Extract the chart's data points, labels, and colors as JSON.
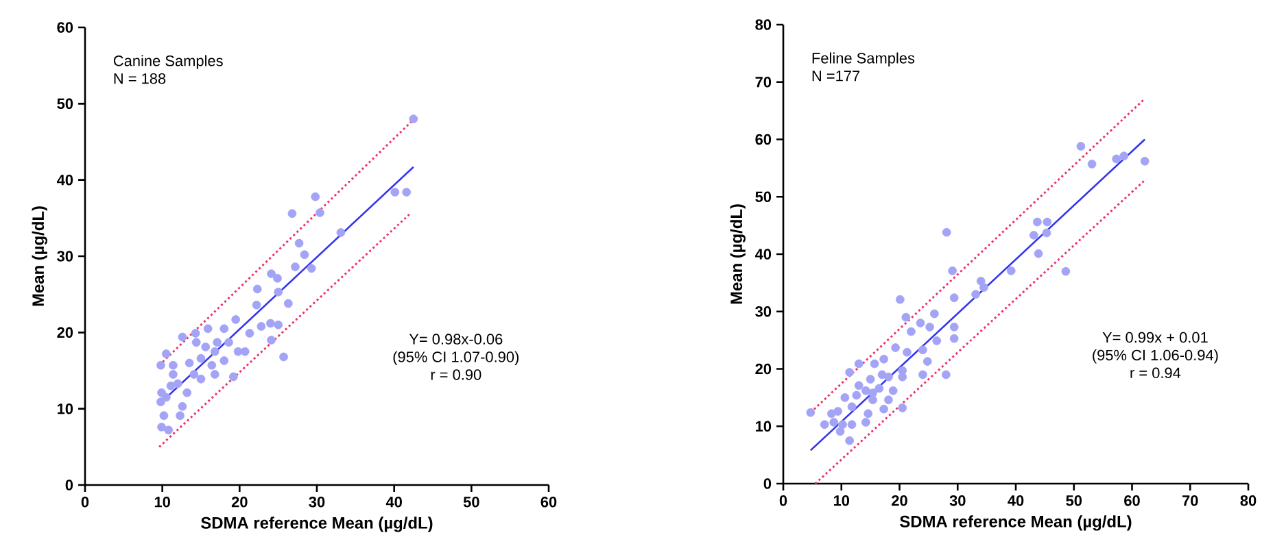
{
  "chart_data": [
    {
      "type": "scatter",
      "xlabel": "SDMA reference Mean (µg/dL)",
      "ylabel": "Mean (µg/dL)",
      "annotations": [
        "Canine Samples",
        "N = 188",
        "Y= 0.98x-0.06",
        "(95% CI 1.07-0.90)",
        "r = 0.90"
      ],
      "xlim": [
        0,
        60
      ],
      "ylim": [
        0,
        60
      ],
      "xticks": [
        0,
        10,
        20,
        30,
        40,
        50,
        60
      ],
      "yticks": [
        0,
        10,
        20,
        30,
        40,
        50,
        60
      ],
      "series": [
        {
          "marker": "circle",
          "color": "#a4a4f6",
          "x": [
            42.5,
            40.1,
            41.6,
            29.8,
            26.8,
            30.4,
            33.1,
            27.7,
            28.4,
            27.2,
            29.3,
            24.9,
            24.1,
            22.3,
            25.0,
            26.3,
            22.2,
            25.7,
            24.1,
            22.8,
            24.0,
            25.0,
            19.5,
            18.0,
            21.3,
            19.8,
            19.2,
            15.9,
            14.3,
            12.6,
            10.5,
            9.8,
            11.4,
            13.5,
            15.0,
            16.8,
            18.0,
            16.4,
            14.1,
            12.0,
            13.2,
            11.1,
            10.5,
            9.8,
            12.6,
            10.2,
            12.3,
            9.9,
            10.8,
            15.0,
            16.8,
            18.6,
            17.1,
            20.7,
            14.4,
            9.9,
            11.4,
            15.6
          ],
          "values": [
            48.0,
            38.4,
            38.4,
            37.8,
            35.6,
            35.7,
            33.1,
            31.7,
            30.2,
            28.6,
            28.4,
            27.1,
            27.7,
            25.7,
            25.3,
            23.8,
            23.6,
            16.8,
            19.0,
            20.8,
            21.2,
            21.0,
            21.7,
            20.5,
            19.9,
            17.5,
            14.2,
            20.5,
            19.9,
            19.4,
            17.2,
            15.7,
            15.7,
            16.0,
            16.6,
            17.5,
            16.3,
            15.7,
            14.5,
            13.3,
            12.1,
            13.0,
            11.5,
            10.9,
            10.3,
            9.1,
            9.1,
            7.6,
            7.2,
            13.9,
            14.5,
            18.7,
            18.7,
            17.5,
            18.7,
            12.1,
            14.5,
            18.1
          ]
        },
        {
          "type": "line",
          "line_style": "solid",
          "color": "#3333ee",
          "x": [
            9.6,
            42.5
          ],
          "values": [
            10.6,
            41.7
          ]
        },
        {
          "type": "line",
          "line_style": "dotted",
          "color": "#f0306a",
          "x": [
            9.6,
            42.5
          ],
          "values": [
            15.7,
            47.9
          ]
        },
        {
          "type": "line",
          "line_style": "dotted",
          "color": "#f0306a",
          "x": [
            9.6,
            42.2
          ],
          "values": [
            5.0,
            35.7
          ]
        }
      ]
    },
    {
      "type": "scatter",
      "xlabel": "SDMA reference Mean (µg/dL)",
      "ylabel": "Mean (µg/dL)",
      "annotations": [
        "Feline Samples",
        "N =177",
        "Y= 0.99x + 0.01",
        "(95% CI 1.06-0.94)",
        "r = 0.94"
      ],
      "xlim": [
        0,
        80
      ],
      "ylim": [
        0,
        80
      ],
      "xticks": [
        0,
        10,
        20,
        30,
        40,
        50,
        60,
        70,
        80
      ],
      "yticks": [
        0,
        10,
        20,
        30,
        40,
        50,
        60,
        70,
        80
      ],
      "series": [
        {
          "marker": "circle",
          "color": "#a4a4f6",
          "x": [
            4.7,
            51.2,
            53.1,
            57.3,
            58.6,
            62.2,
            43.7,
            45.4,
            43.1,
            45.3,
            43.9,
            48.6,
            39.2,
            34.0,
            34.5,
            33.1,
            28.1,
            29.1,
            29.4,
            29.4,
            29.4,
            20.1,
            26.0,
            21.1,
            23.6,
            25.2,
            26.4,
            22.0,
            19.3,
            24.0,
            21.3,
            24.8,
            28.0,
            24.0,
            20.5,
            17.3,
            20.5,
            18.1,
            15.7,
            13.0,
            11.4,
            15.0,
            16.5,
            14.2,
            12.6,
            15.4,
            18.1,
            20.5,
            17.3,
            14.6,
            11.8,
            10.6,
            9.4,
            8.3,
            8.7,
            10.2,
            11.8,
            14.2,
            11.4,
            9.8,
            7.1,
            13.0,
            15.4,
            17.0,
            18.9
          ],
          "values": [
            12.4,
            58.8,
            55.7,
            56.6,
            57.1,
            56.2,
            45.6,
            45.6,
            43.3,
            43.7,
            40.1,
            37.0,
            37.1,
            35.3,
            34.2,
            33.0,
            43.8,
            37.1,
            32.4,
            27.3,
            25.3,
            32.1,
            29.6,
            29.0,
            28.0,
            27.3,
            24.9,
            26.5,
            23.7,
            23.3,
            22.9,
            21.3,
            19.0,
            19.0,
            19.7,
            21.7,
            18.6,
            18.6,
            20.9,
            20.9,
            19.4,
            18.2,
            16.6,
            16.2,
            15.4,
            14.6,
            14.6,
            13.2,
            13.0,
            12.2,
            13.4,
            15.0,
            12.6,
            12.2,
            10.7,
            10.3,
            10.3,
            10.7,
            7.5,
            9.1,
            10.3,
            17.1,
            15.8,
            19.0,
            16.2
          ]
        },
        {
          "type": "line",
          "line_style": "solid",
          "color": "#3333ee",
          "x": [
            4.7,
            62.2
          ],
          "values": [
            5.8,
            60.0
          ]
        },
        {
          "type": "line",
          "line_style": "dotted",
          "color": "#f0306a",
          "x": [
            4.7,
            62.2
          ],
          "values": [
            12.4,
            67.1
          ]
        },
        {
          "type": "line",
          "line_style": "dotted",
          "color": "#f0306a",
          "x": [
            5.5,
            62.2
          ],
          "values": [
            0,
            52.9
          ]
        }
      ]
    }
  ]
}
